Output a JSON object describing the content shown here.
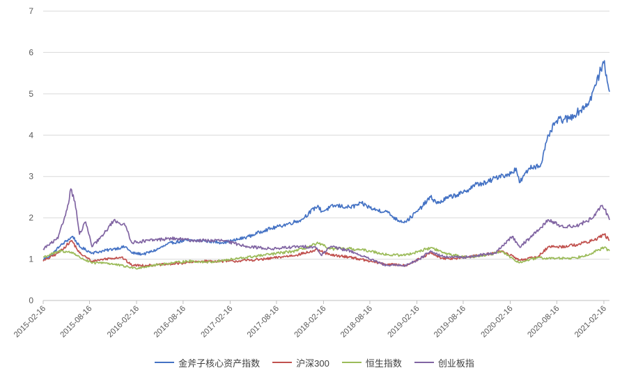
{
  "chart_data": {
    "type": "line",
    "title": "",
    "xlabel": "",
    "ylabel": "",
    "ylim": [
      0,
      7
    ],
    "yticks": [
      0,
      1,
      2,
      3,
      4,
      5,
      6,
      7
    ],
    "grid": "horizontal",
    "legend_position": "bottom",
    "x_ticks": [
      "2015-02-16",
      "2015-08-16",
      "2016-02-16",
      "2016-08-16",
      "2017-02-16",
      "2017-08-16",
      "2018-02-16",
      "2018-08-16",
      "2019-02-16",
      "2019-08-16",
      "2020-02-16",
      "2020-08-16",
      "2021-02-16"
    ],
    "x_range": [
      "2015-02-16",
      "2021-03-10"
    ],
    "series": [
      {
        "name": "金斧子核心资产指数",
        "color": "#4472C4",
        "x": [
          "2015-02-16",
          "2015-03-20",
          "2015-04-20",
          "2015-05-20",
          "2015-06-12",
          "2015-07-08",
          "2015-08-26",
          "2015-10-10",
          "2015-11-20",
          "2016-01-05",
          "2016-01-28",
          "2016-03-15",
          "2016-05-01",
          "2016-07-01",
          "2016-09-01",
          "2016-11-01",
          "2017-01-15",
          "2017-03-01",
          "2017-05-01",
          "2017-07-01",
          "2017-09-01",
          "2017-11-20",
          "2018-01-25",
          "2018-02-09",
          "2018-04-01",
          "2018-06-01",
          "2018-07-15",
          "2018-09-01",
          "2018-10-20",
          "2018-12-01",
          "2019-01-03",
          "2019-02-25",
          "2019-04-10",
          "2019-05-10",
          "2019-06-20",
          "2019-08-15",
          "2019-10-01",
          "2019-11-15",
          "2020-01-15",
          "2020-02-03",
          "2020-03-10",
          "2020-03-23",
          "2020-05-01",
          "2020-06-15",
          "2020-07-15",
          "2020-08-15",
          "2020-10-01",
          "2020-11-15",
          "2020-12-20",
          "2021-01-15",
          "2021-02-10",
          "2021-02-18",
          "2021-03-01",
          "2021-03-10"
        ],
        "values": [
          1.0,
          1.1,
          1.3,
          1.45,
          1.55,
          1.3,
          1.15,
          1.2,
          1.25,
          1.3,
          1.15,
          1.12,
          1.22,
          1.4,
          1.45,
          1.45,
          1.4,
          1.45,
          1.55,
          1.7,
          1.8,
          1.95,
          2.3,
          2.15,
          2.3,
          2.25,
          2.35,
          2.2,
          2.15,
          1.95,
          1.9,
          2.2,
          2.5,
          2.35,
          2.5,
          2.6,
          2.8,
          2.85,
          3.05,
          3.0,
          3.2,
          2.85,
          3.2,
          3.3,
          4.0,
          4.35,
          4.4,
          4.6,
          4.8,
          5.2,
          5.7,
          5.8,
          5.3,
          5.05
        ]
      },
      {
        "name": "沪深300",
        "color": "#C0504D",
        "x": [
          "2015-02-16",
          "2015-04-15",
          "2015-06-08",
          "2015-07-08",
          "2015-08-26",
          "2015-10-10",
          "2015-12-20",
          "2016-01-28",
          "2016-04-01",
          "2016-07-01",
          "2016-11-01",
          "2017-03-01",
          "2017-07-01",
          "2017-11-01",
          "2018-01-24",
          "2018-03-15",
          "2018-06-01",
          "2018-08-15",
          "2018-10-15",
          "2019-01-03",
          "2019-02-25",
          "2019-04-10",
          "2019-06-01",
          "2019-09-01",
          "2019-12-20",
          "2020-01-13",
          "2020-03-23",
          "2020-06-01",
          "2020-07-15",
          "2020-09-01",
          "2020-11-01",
          "2021-01-05",
          "2021-02-18",
          "2021-03-10"
        ],
        "values": [
          0.95,
          1.15,
          1.45,
          1.15,
          0.95,
          1.0,
          1.05,
          0.85,
          0.85,
          0.88,
          0.95,
          0.95,
          1.0,
          1.1,
          1.22,
          1.1,
          1.05,
          0.95,
          0.88,
          0.85,
          1.0,
          1.15,
          1.0,
          1.05,
          1.15,
          1.2,
          0.98,
          1.05,
          1.3,
          1.3,
          1.35,
          1.45,
          1.6,
          1.45
        ]
      },
      {
        "name": "恒生指数",
        "color": "#9BBB59",
        "x": [
          "2015-02-16",
          "2015-04-28",
          "2015-06-15",
          "2015-07-08",
          "2015-08-26",
          "2015-10-10",
          "2016-02-12",
          "2016-05-01",
          "2016-09-01",
          "2016-12-01",
          "2017-03-01",
          "2017-07-01",
          "2017-11-01",
          "2018-01-26",
          "2018-03-15",
          "2018-06-01",
          "2018-08-15",
          "2018-10-30",
          "2019-01-03",
          "2019-04-15",
          "2019-06-01",
          "2019-08-15",
          "2019-11-01",
          "2020-01-17",
          "2020-03-19",
          "2020-06-01",
          "2020-08-01",
          "2020-10-30",
          "2021-01-01",
          "2021-02-17",
          "2021-03-10"
        ],
        "values": [
          1.05,
          1.2,
          1.15,
          1.05,
          0.9,
          0.92,
          0.78,
          0.86,
          0.95,
          0.93,
          1.0,
          1.1,
          1.2,
          1.38,
          1.25,
          1.25,
          1.2,
          1.1,
          1.1,
          1.28,
          1.15,
          1.05,
          1.08,
          1.18,
          0.92,
          1.03,
          1.02,
          1.03,
          1.15,
          1.28,
          1.2
        ]
      },
      {
        "name": "创业板指",
        "color": "#8064A2",
        "x": [
          "2015-02-16",
          "2015-04-15",
          "2015-05-20",
          "2015-06-04",
          "2015-06-20",
          "2015-07-08",
          "2015-08-01",
          "2015-08-26",
          "2015-10-10",
          "2015-11-20",
          "2016-01-05",
          "2016-01-28",
          "2016-04-01",
          "2016-07-01",
          "2016-10-01",
          "2017-01-15",
          "2017-05-01",
          "2017-08-01",
          "2017-11-01",
          "2018-01-15",
          "2018-02-06",
          "2018-03-15",
          "2018-06-01",
          "2018-08-15",
          "2018-10-18",
          "2019-01-03",
          "2019-02-25",
          "2019-04-10",
          "2019-06-01",
          "2019-09-01",
          "2019-12-20",
          "2020-02-24",
          "2020-03-23",
          "2020-05-01",
          "2020-07-15",
          "2020-09-01",
          "2020-11-01",
          "2021-01-05",
          "2021-02-10",
          "2021-02-20",
          "2021-03-10"
        ],
        "values": [
          1.25,
          1.5,
          2.2,
          2.7,
          2.4,
          1.6,
          1.9,
          1.3,
          1.6,
          1.95,
          1.8,
          1.4,
          1.45,
          1.5,
          1.45,
          1.45,
          1.3,
          1.25,
          1.3,
          1.3,
          1.1,
          1.3,
          1.2,
          1.0,
          0.85,
          0.85,
          1.0,
          1.2,
          1.05,
          1.05,
          1.15,
          1.55,
          1.3,
          1.5,
          1.95,
          1.8,
          1.8,
          2.0,
          2.3,
          2.2,
          1.95
        ]
      }
    ]
  }
}
